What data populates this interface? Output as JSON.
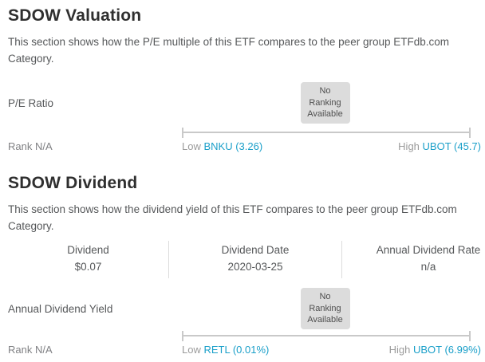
{
  "colors": {
    "link_teal": "#1a9fc9",
    "badge_bg": "#dcdcdc",
    "track_gray": "#c9c9c9",
    "heading": "#2f2f2f",
    "body_text": "#56585a"
  },
  "valuation": {
    "title": "SDOW Valuation",
    "description": "This section shows how the P/E multiple of this ETF compares to the peer group ETFdb.com Category.",
    "metric_label": "P/E Ratio",
    "badge": "No Ranking Available",
    "rank_label": "Rank N/A",
    "low_prefix": "Low",
    "low_link": "BNKU (3.26)",
    "high_prefix": "High",
    "high_link": "UBOT (45.7)"
  },
  "dividend": {
    "title": "SDOW Dividend",
    "description": "This section shows how the dividend yield of this ETF compares to the peer group ETFdb.com Category.",
    "table": {
      "columns": [
        {
          "label": "Dividend",
          "value": "$0.07"
        },
        {
          "label": "Dividend Date",
          "value": "2020-03-25"
        },
        {
          "label": "Annual Dividend Rate",
          "value": "n/a"
        }
      ]
    },
    "metric_label": "Annual Dividend Yield",
    "badge": "No Ranking Available",
    "rank_label": "Rank N/A",
    "low_prefix": "Low",
    "low_link": "RETL (0.01%)",
    "high_prefix": "High",
    "high_link": "UBOT (6.99%)"
  }
}
